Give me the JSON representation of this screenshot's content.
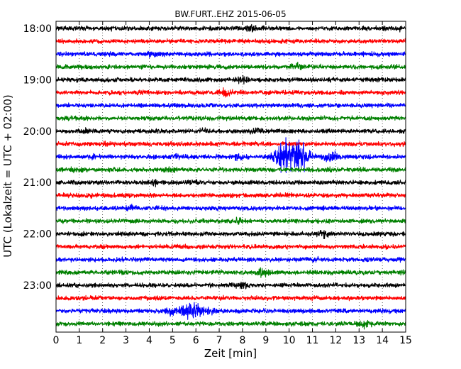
{
  "chart_data": {
    "type": "line",
    "title": "BW.FURT..EHZ 2015-06-05",
    "xlabel": "Zeit  [min]",
    "ylabel": "UTC (Lokalzeit = UTC + 02:00)",
    "xlim": [
      0,
      15
    ],
    "xticks": [
      "0",
      "1",
      "2",
      "3",
      "4",
      "5",
      "6",
      "7",
      "8",
      "9",
      "10",
      "11",
      "12",
      "13",
      "14",
      "15"
    ],
    "yticks": [
      "18:00",
      "19:00",
      "20:00",
      "21:00",
      "22:00",
      "23:00"
    ],
    "grid": "vertical-dotted",
    "trace_colors": [
      "#000000",
      "#ff0000",
      "#0000ff",
      "#008000"
    ],
    "traces": [
      {
        "start": "18:00",
        "color": "#000000",
        "events": [
          [
            2.1,
            1.2
          ],
          [
            8.4,
            2.0
          ],
          [
            14.6,
            1.6
          ]
        ]
      },
      {
        "start": "18:15",
        "color": "#ff0000",
        "events": [
          [
            2.4,
            0.8
          ]
        ]
      },
      {
        "start": "18:30",
        "color": "#0000ff",
        "events": [
          [
            4.1,
            2.0
          ],
          [
            10.3,
            0.9
          ]
        ]
      },
      {
        "start": "18:45",
        "color": "#008000",
        "events": [
          [
            10.3,
            2.0
          ]
        ]
      },
      {
        "start": "19:00",
        "color": "#000000",
        "events": [
          [
            8.0,
            2.2
          ]
        ]
      },
      {
        "start": "19:15",
        "color": "#ff0000",
        "events": [
          [
            7.3,
            2.2
          ]
        ]
      },
      {
        "start": "19:30",
        "color": "#0000ff",
        "events": [
          [
            5.0,
            1.3
          ],
          [
            12.4,
            1.0
          ]
        ]
      },
      {
        "start": "19:45",
        "color": "#008000",
        "events": [
          [
            1.2,
            1.0
          ],
          [
            6.7,
            1.0
          ]
        ]
      },
      {
        "start": "20:00",
        "color": "#000000",
        "events": [
          [
            1.2,
            1.6
          ],
          [
            6.3,
            1.6
          ],
          [
            8.6,
            1.8
          ]
        ]
      },
      {
        "start": "20:15",
        "color": "#ff0000",
        "events": [
          [
            2.1,
            1.4
          ]
        ]
      },
      {
        "start": "20:30",
        "color": "#0000ff",
        "events": [
          [
            1.6,
            1.5
          ],
          [
            5.1,
            1.8
          ],
          [
            7.8,
            2.0
          ],
          [
            9.8,
            7.5
          ],
          [
            10.5,
            6.5
          ],
          [
            11.8,
            2.8
          ],
          [
            13.0,
            1.5
          ]
        ]
      },
      {
        "start": "20:45",
        "color": "#008000",
        "events": [
          [
            0.8,
            1.4
          ],
          [
            4.9,
            1.4
          ],
          [
            11.9,
            1.2
          ]
        ]
      },
      {
        "start": "21:00",
        "color": "#000000",
        "events": [
          [
            4.3,
            1.8
          ],
          [
            5.8,
            1.7
          ]
        ]
      },
      {
        "start": "21:15",
        "color": "#ff0000",
        "events": [
          [
            1.4,
            1.4
          ]
        ]
      },
      {
        "start": "21:30",
        "color": "#0000ff",
        "events": [
          [
            3.2,
            2.0
          ]
        ]
      },
      {
        "start": "21:45",
        "color": "#008000",
        "events": [
          [
            7.9,
            2.0
          ]
        ]
      },
      {
        "start": "22:00",
        "color": "#000000",
        "events": [
          [
            11.5,
            2.2
          ]
        ]
      },
      {
        "start": "22:15",
        "color": "#ff0000",
        "events": []
      },
      {
        "start": "22:30",
        "color": "#0000ff",
        "events": [
          [
            1.9,
            1.4
          ],
          [
            11.2,
            1.5
          ]
        ]
      },
      {
        "start": "22:45",
        "color": "#008000",
        "events": [
          [
            8.9,
            2.6
          ],
          [
            14.9,
            1.4
          ]
        ]
      },
      {
        "start": "23:00",
        "color": "#000000",
        "events": [
          [
            8.0,
            2.0
          ]
        ]
      },
      {
        "start": "23:15",
        "color": "#ff0000",
        "events": []
      },
      {
        "start": "23:30",
        "color": "#0000ff",
        "events": [
          [
            4.9,
            2.2
          ],
          [
            5.8,
            4.5
          ],
          [
            6.6,
            2.6
          ]
        ]
      },
      {
        "start": "23:45",
        "color": "#008000",
        "events": [
          [
            13.2,
            2.2
          ]
        ]
      }
    ]
  }
}
